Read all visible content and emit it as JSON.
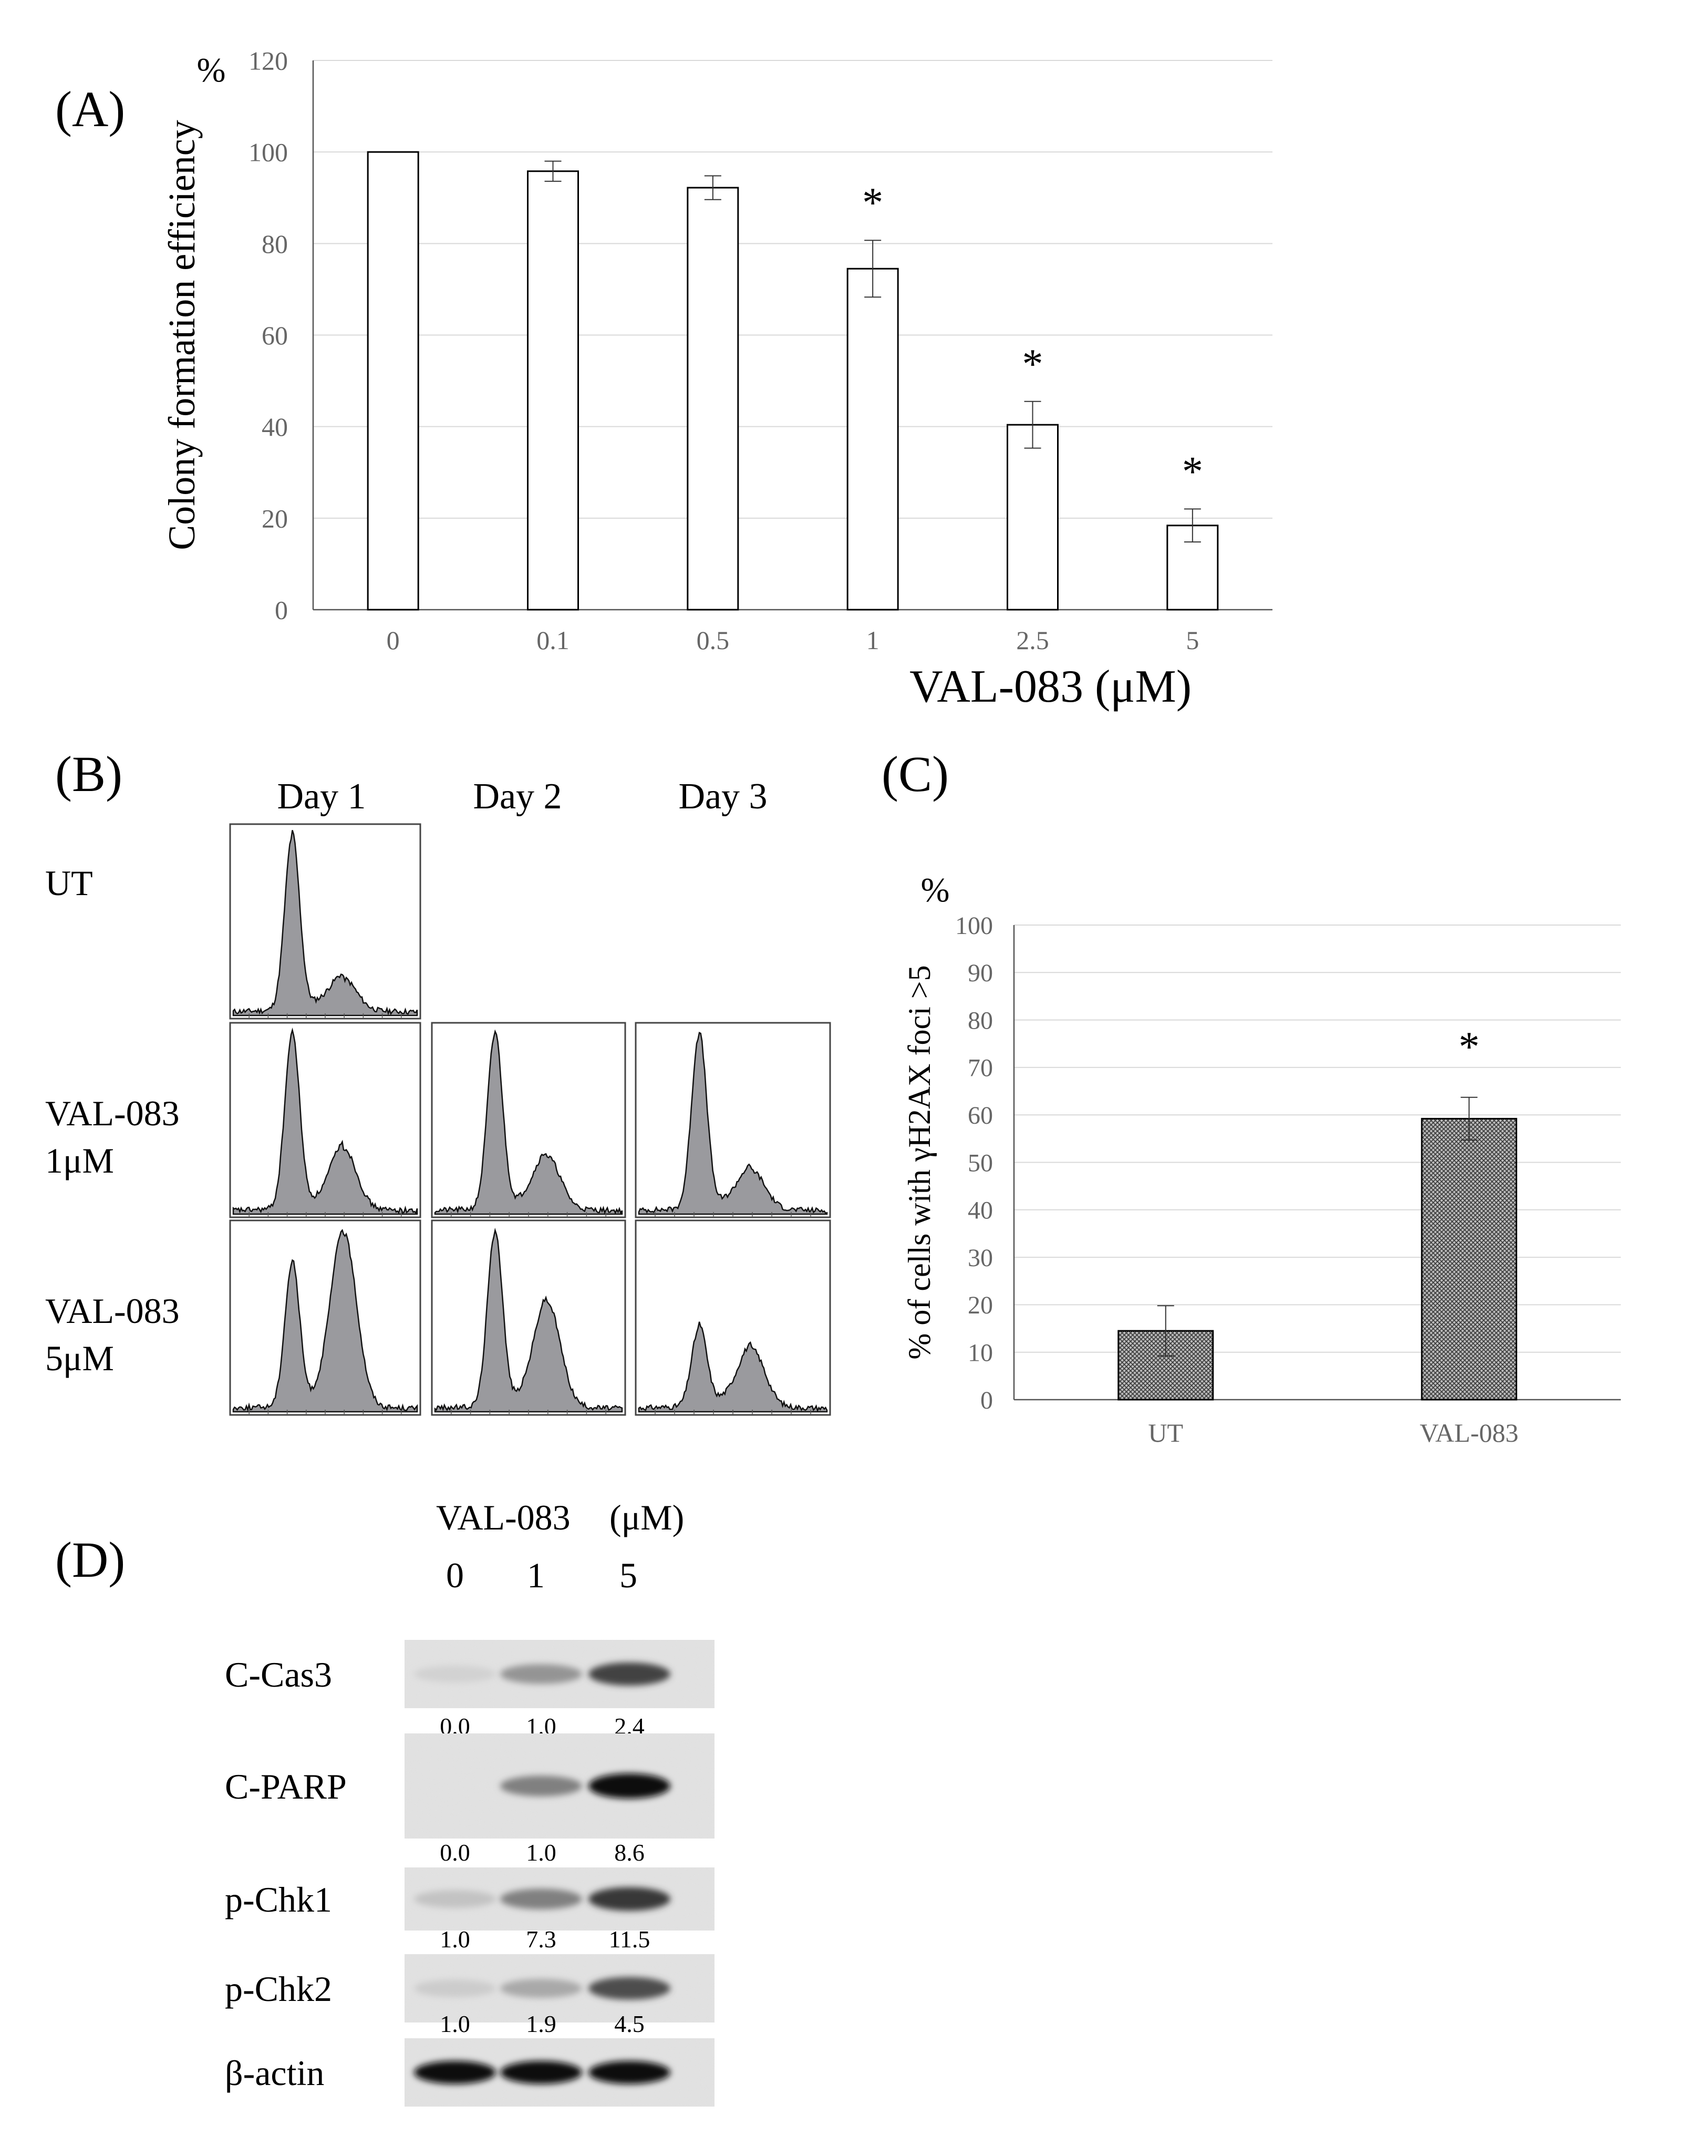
{
  "colors": {
    "axis": "#555555",
    "grid": "#d9d9d9",
    "bar_fill": "#ffffff",
    "bar_stroke": "#000000",
    "hatch_fill": "#8a8a8a",
    "histogram_fill": "#9a9a9e",
    "text": "#000000",
    "tick_text": "#666666"
  },
  "panels": {
    "a_label": "(A)",
    "b_label": "(B)",
    "c_label": "(C)",
    "d_label": "(D)"
  },
  "chart_data": [
    {
      "id": "A",
      "type": "bar",
      "title": "",
      "unit_label": "%",
      "ylabel": "Colony formation efficiency",
      "xlabel": "VAL-083 (μM)",
      "categories": [
        "0",
        "0.1",
        "0.5",
        "1",
        "2.5",
        "5"
      ],
      "values": [
        100,
        95.8,
        92.2,
        74.5,
        40.4,
        18.4
      ],
      "errors": [
        0,
        2.2,
        2.6,
        6.2,
        5.1,
        3.6
      ],
      "significance": [
        "",
        "",
        "",
        "*",
        "*",
        "*"
      ],
      "ylim": [
        0,
        120
      ],
      "yticks": [
        0,
        20,
        40,
        60,
        80,
        100,
        120
      ],
      "grid": true
    },
    {
      "id": "C",
      "type": "bar",
      "title": "",
      "unit_label": "%",
      "ylabel": "% of cells with γH2AX foci >5",
      "xlabel": "",
      "categories": [
        "UT",
        "VAL-083"
      ],
      "values": [
        14.5,
        59.2
      ],
      "errors": [
        5.3,
        4.5
      ],
      "significance": [
        "",
        "*"
      ],
      "ylim": [
        0,
        100
      ],
      "yticks": [
        0,
        10,
        20,
        30,
        40,
        50,
        60,
        70,
        80,
        90,
        100
      ],
      "grid": true
    }
  ],
  "panel_b": {
    "days": [
      "Day 1",
      "Day 2",
      "Day 3"
    ],
    "rows": [
      {
        "label_line1": "UT",
        "label_line2": "",
        "histograms": [
          {
            "g1": 1.0,
            "g2": 0.18
          },
          null,
          null
        ]
      },
      {
        "label_line1": "VAL-083",
        "label_line2": "1μM",
        "histograms": [
          {
            "g1": 1.0,
            "g2": 0.35
          },
          {
            "g1": 1.0,
            "g2": 0.3
          },
          {
            "g1": 1.0,
            "g2": 0.22
          }
        ]
      },
      {
        "label_line1": "VAL-083",
        "label_line2": "5μM",
        "histograms": [
          {
            "g1": 0.82,
            "g2": 1.0
          },
          {
            "g1": 1.0,
            "g2": 0.6
          },
          {
            "g1": 0.45,
            "g2": 0.33
          }
        ]
      }
    ]
  },
  "panel_d": {
    "treatment_label": "VAL-083",
    "unit_label": "(μM)",
    "lanes": [
      "0",
      "1",
      "5"
    ],
    "blots": [
      {
        "name": "C-Cas3",
        "quant": [
          "0.0",
          "1.0",
          "2.4"
        ],
        "intensities": [
          0.05,
          0.35,
          0.75
        ]
      },
      {
        "name": "C-PARP",
        "quant": [
          "0.0",
          "1.0",
          "8.6"
        ],
        "intensities": [
          0.0,
          0.45,
          1.0
        ]
      },
      {
        "name": "p-Chk1",
        "quant": [
          "1.0",
          "7.3",
          "11.5"
        ],
        "intensities": [
          0.12,
          0.45,
          0.8
        ]
      },
      {
        "name": "p-Chk2",
        "quant": [
          "1.0",
          "1.9",
          "4.5"
        ],
        "intensities": [
          0.08,
          0.25,
          0.7
        ]
      },
      {
        "name": "β-actin",
        "quant": [],
        "intensities": [
          1.0,
          1.0,
          1.0
        ]
      }
    ]
  }
}
